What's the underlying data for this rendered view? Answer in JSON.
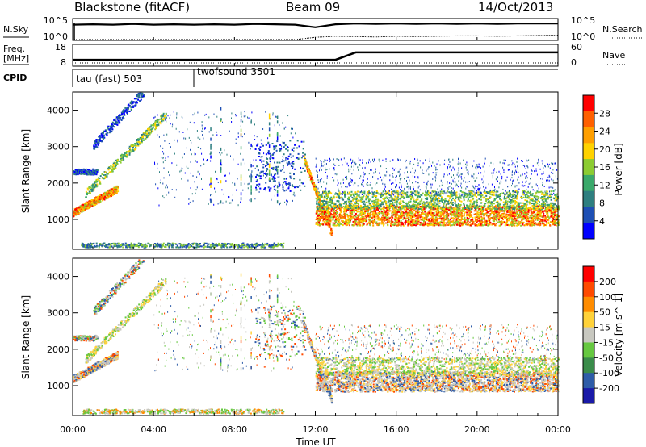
{
  "chart_data": [
    {
      "type": "line",
      "title": "Blackstone (fitACF)",
      "beam": "Beam 09",
      "date": "14/Oct/2013",
      "ylabel_left": "N.Sky",
      "yticks_left": [
        "10^5",
        "10^0"
      ],
      "ylabel_right": "N.Search",
      "yticks_right": [
        "10^5",
        "10^0"
      ],
      "y_scale": "log",
      "series": [
        {
          "values": [
            4.0,
            4.1,
            4.0,
            4.2,
            4.0,
            4.1,
            4.0,
            4.1,
            4.0,
            4.2,
            4.1,
            4.0,
            3.3,
            4.1,
            4.3,
            4.2,
            4.3,
            4.2,
            4.3,
            4.2,
            4.3,
            4.2,
            4.3,
            4.3,
            4.3
          ]
        },
        {
          "values": [
            0.0,
            0.0,
            0.0,
            0.0,
            0.0,
            0.0,
            0.0,
            0.0,
            0.0,
            0.0,
            0.0,
            0.0,
            0.6,
            0.9,
            0.8,
            0.7,
            0.9,
            0.8,
            0.9,
            1.0,
            1.0,
            0.9,
            1.0,
            1.1,
            1.2
          ]
        }
      ]
    },
    {
      "type": "line",
      "ylabel_left": "Freq.\n[MHz]",
      "yticks_left": [
        "18",
        "8"
      ],
      "ylabel_right": "Nave",
      "yticks_right": [
        "60",
        "0"
      ],
      "series": [
        {
          "values": [
            11,
            11,
            11,
            11,
            11,
            11,
            11,
            11,
            11,
            11,
            11,
            11,
            11,
            11,
            15,
            15,
            15,
            15,
            15,
            15,
            15,
            15,
            15,
            15,
            15
          ]
        }
      ]
    },
    {
      "type": "table",
      "label": "CPID",
      "segments": [
        {
          "name": "tau (fast) 503",
          "start_h": 0
        },
        {
          "name": "twofsound 3501",
          "start_h": 6
        }
      ]
    },
    {
      "type": "heatmap",
      "ylabel": "Slant Range [km]",
      "yticks": [
        "1000",
        "2000",
        "3000",
        "4000"
      ],
      "ylim": [
        180,
        4500
      ],
      "colorbar_label": "Power [dB]",
      "colorbar_ticks": [
        "28",
        "24",
        "20",
        "16",
        "12",
        "8",
        "4"
      ],
      "colorbar_colors": [
        "#0000ff",
        "#1e4fb4",
        "#2e7f80",
        "#3aa96a",
        "#8ccc32",
        "#ffd200",
        "#ff9f00",
        "#ff6000",
        "#ff0000"
      ]
    },
    {
      "type": "heatmap",
      "ylabel": "Slant Range [km]",
      "yticks": [
        "1000",
        "2000",
        "3000",
        "4000"
      ],
      "ylim": [
        180,
        4500
      ],
      "colorbar_label": "Velocity [m s^-1]",
      "colorbar_ticks": [
        "200",
        "100",
        "50",
        "15",
        "-15",
        "-50",
        "-100",
        "-200"
      ],
      "colorbar_colors": [
        "#1a1aa8",
        "#2e5ca8",
        "#3a8c4a",
        "#66c840",
        "#c8c8c0",
        "#ffd23a",
        "#ff8c00",
        "#ff4a00",
        "#ff0000"
      ]
    }
  ],
  "xaxis": {
    "label": "Time UT",
    "ticks": [
      "00:00",
      "04:00",
      "08:00",
      "12:00",
      "16:00",
      "20:00",
      "00:00"
    ]
  }
}
